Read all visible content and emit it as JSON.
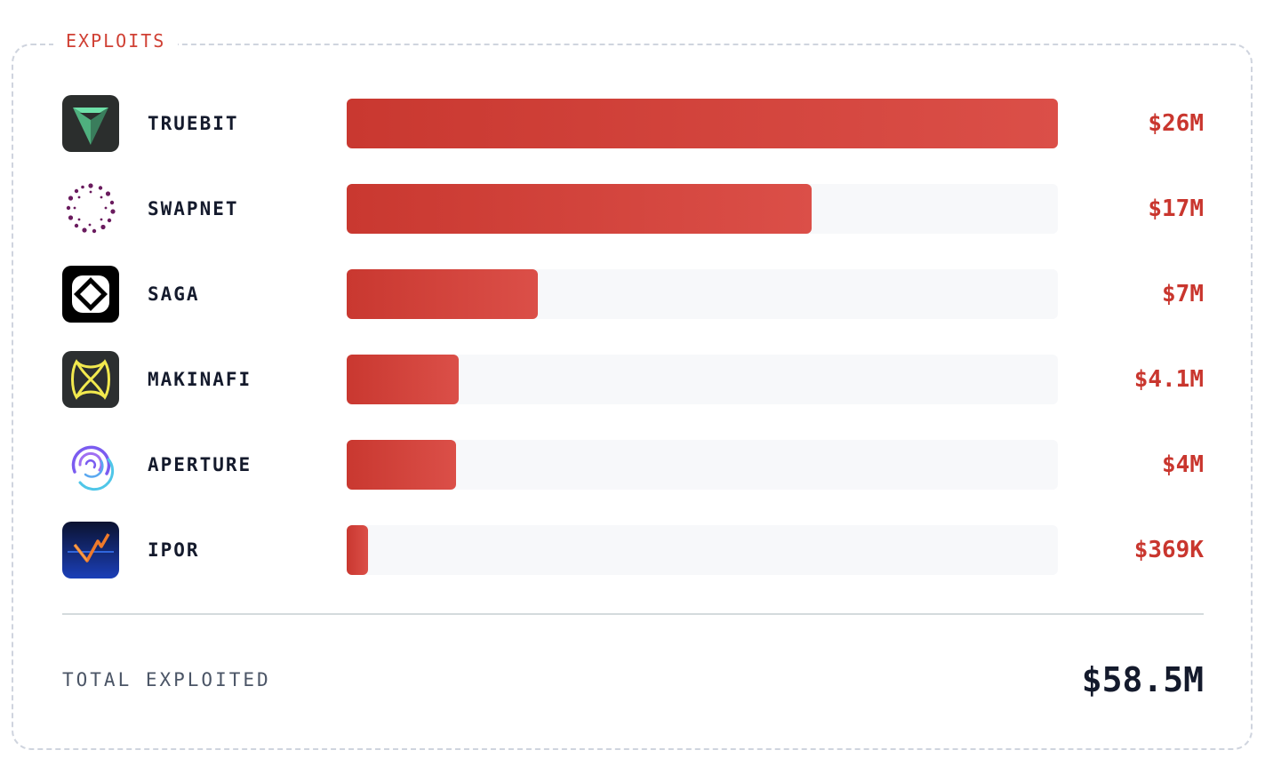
{
  "panel": {
    "label": "EXPLOITS"
  },
  "chart_data": {
    "type": "bar",
    "orientation": "horizontal",
    "categories": [
      "TRUEBIT",
      "SWAPNET",
      "SAGA",
      "MAKINAFI",
      "APERTURE",
      "IPOR"
    ],
    "values_millions": [
      26,
      17,
      7,
      4.1,
      4,
      0.369
    ],
    "value_labels": [
      "$26M",
      "$17M",
      "$7M",
      "$4.1M",
      "$4M",
      "$369K"
    ],
    "logos": [
      "truebit-icon",
      "swapnet-icon",
      "saga-icon",
      "makinafi-icon",
      "aperture-icon",
      "ipor-icon"
    ],
    "xlim": [
      0,
      26
    ],
    "bar_color": "#d04034",
    "value_color": "#c9362e"
  },
  "rows": [
    {
      "name": "TRUEBIT",
      "value": "$26M"
    },
    {
      "name": "SWAPNET",
      "value": "$17M"
    },
    {
      "name": "SAGA",
      "value": "$7M"
    },
    {
      "name": "MAKINAFI",
      "value": "$4.1M"
    },
    {
      "name": "APERTURE",
      "value": "$4M"
    },
    {
      "name": "IPOR",
      "value": "$369K"
    }
  ],
  "total": {
    "label": "TOTAL EXPLOITED",
    "value": "$58.5M"
  }
}
